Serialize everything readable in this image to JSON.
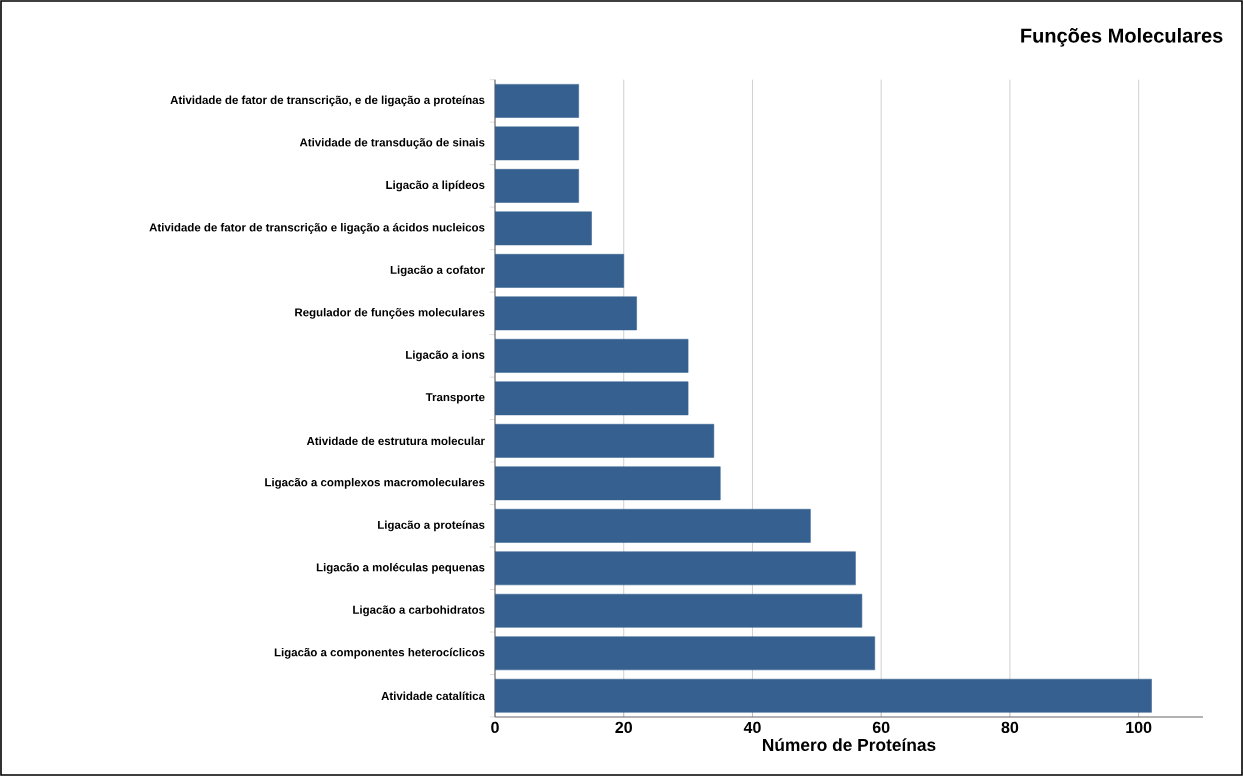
{
  "chart_data": {
    "type": "bar",
    "orientation": "horizontal",
    "title": "Funções Moleculares",
    "xlabel": "Número de Proteínas",
    "categories": [
      "Atividade de fator de transcrição, e de ligação a proteínas",
      "Atividade de transdução de sinais",
      "Ligacão a lipídeos",
      "Atividade de fator de transcrição e ligação a ácidos nucleicos",
      "Ligacão a cofator",
      "Regulador de funções moleculares",
      "Ligacão a ions",
      "Transporte",
      "Atividade de estrutura molecular",
      "Ligacão a complexos macromoleculares",
      "Ligacão a proteínas",
      "Ligacão a moléculas pequenas",
      "Ligacão a carbohidratos",
      "Ligacão a componentes heterocíclicos",
      "Atividade catalítica"
    ],
    "values": [
      13,
      13,
      13,
      15,
      20,
      22,
      30,
      30,
      34,
      35,
      49,
      56,
      57,
      59,
      102
    ],
    "color": "#35608f",
    "xlim": [
      0,
      110
    ],
    "xticks": [
      0,
      20,
      40,
      60,
      80,
      100
    ],
    "grid": "x"
  }
}
